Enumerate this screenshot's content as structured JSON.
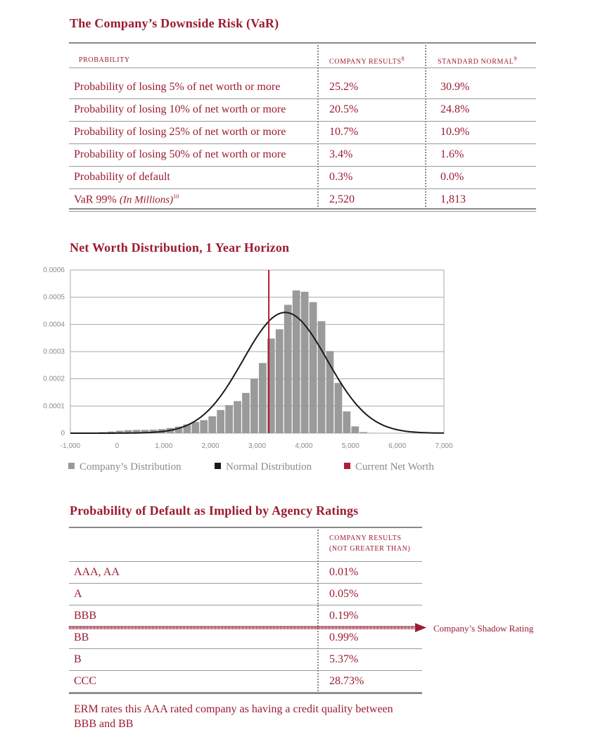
{
  "var_section": {
    "title": "The Company’s Downside Risk (VaR)",
    "headers": {
      "probability": "probability",
      "company_results": "company results",
      "company_results_note": "8",
      "standard_normal": "standard normal",
      "standard_normal_note": "9"
    },
    "rows": [
      {
        "label": "Probability of losing 5% of net worth or more",
        "company": "25.2%",
        "normal": "30.9%"
      },
      {
        "label": "Probability of losing 10% of net worth or more",
        "company": "20.5%",
        "normal": "24.8%"
      },
      {
        "label": "Probability of losing 25% of net worth or more",
        "company": "10.7%",
        "normal": "10.9%"
      },
      {
        "label": "Probability of losing 50% of net worth or more",
        "company": "3.4%",
        "normal": "1.6%"
      },
      {
        "label": "Probability of default",
        "company": "0.3%",
        "normal": "0.0%"
      },
      {
        "label": "VaR 99%",
        "label_italic": "(In Millions)",
        "label_note": "10",
        "company": "2,520",
        "normal": "1,813"
      }
    ]
  },
  "chart_section": {
    "title": "Net Worth Distribution, 1 Year Horizon",
    "legend": {
      "company": "Company’s Distribution",
      "normal": "Normal Distribution",
      "current": "Current Net Worth"
    }
  },
  "chart_data": {
    "type": "bar",
    "title": "Net Worth Distribution, 1 Year Horizon",
    "xlim": [
      -1000,
      7000
    ],
    "ylim": [
      0,
      0.0006
    ],
    "x_ticks": [
      -1000,
      0,
      1000,
      2000,
      3000,
      4000,
      5000,
      6000,
      7000
    ],
    "x_tick_labels": [
      "-1,000",
      "0",
      "1,000",
      "2,000",
      "3,000",
      "4,000",
      "5,000",
      "6,000",
      "7,000"
    ],
    "y_ticks": [
      0,
      0.0001,
      0.0002,
      0.0003,
      0.0004,
      0.0005,
      0.0006
    ],
    "y_tick_labels": [
      "0",
      "0.0001",
      "0.0002",
      "0.0003",
      "0.0004",
      "0.0005",
      "0.0006"
    ],
    "grid": true,
    "legend_position": "bottom",
    "series": [
      {
        "name": "Company’s Distribution",
        "type": "bar",
        "color": "#9a9a9a",
        "bin_width": 180,
        "x": [
          -300,
          -120,
          60,
          240,
          420,
          600,
          780,
          960,
          1140,
          1320,
          1500,
          1680,
          1860,
          2040,
          2220,
          2400,
          2580,
          2760,
          2940,
          3120,
          3300,
          3480,
          3660,
          3840,
          4020,
          4200,
          4380,
          4560,
          4740,
          4920,
          5100,
          5280,
          5460
        ],
        "values": [
          4e-06,
          6e-06,
          9e-06,
          1.1e-05,
          1.2e-05,
          1.2e-05,
          1.3e-05,
          1.5e-05,
          1.9e-05,
          2.4e-05,
          3.2e-05,
          4.1e-05,
          4.8e-05,
          6.2e-05,
          8.5e-05,
          0.000103,
          0.000118,
          0.000148,
          0.0002,
          0.000258,
          0.000348,
          0.000382,
          0.000472,
          0.000525,
          0.00052,
          0.000482,
          0.000412,
          0.000302,
          0.000185,
          8e-05,
          2.5e-05,
          4e-06,
          1e-06
        ]
      },
      {
        "name": "Normal Distribution",
        "type": "line",
        "color": "#1a1a1a",
        "mean": 3600,
        "sd": 900,
        "peak": 0.000444
      },
      {
        "name": "Current Net Worth",
        "type": "vline",
        "color": "#b31b34",
        "x": 3250
      }
    ]
  },
  "ratings_section": {
    "title": "Probability of Default as Implied by Agency Ratings",
    "header_line1": "company results",
    "header_line2": "(not greater than)",
    "rows": [
      {
        "rating": "AAA, AA",
        "value": "0.01%"
      },
      {
        "rating": "A",
        "value": "0.05%"
      },
      {
        "rating": "BBB",
        "value": "0.19%"
      },
      {
        "rating": "BB",
        "value": "0.99%"
      },
      {
        "rating": "B",
        "value": "5.37%"
      },
      {
        "rating": "CCC",
        "value": "28.73%"
      }
    ],
    "shadow_label": "Company’s Shadow Rating",
    "note": "ERM rates this AAA rated company as having a credit quality between BBB and BB"
  }
}
